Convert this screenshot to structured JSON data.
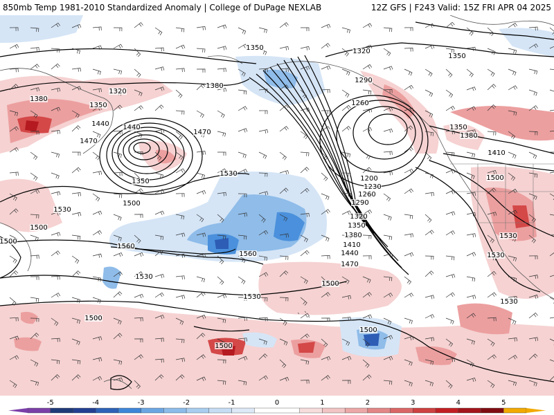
{
  "header": {
    "left": "850mb Temp 1981-2010 Standardized Anomaly | College of DuPage NEXLAB",
    "right": "12Z GFS | F243 Valid: 15Z FRI APR 04 2025"
  },
  "contour_labels": [
    {
      "text": "1350",
      "where": "north-pacific-top"
    },
    {
      "text": "1320",
      "where": "gulf-alaska-north"
    },
    {
      "text": "1290",
      "where": "gulf-alaska"
    },
    {
      "text": "1260",
      "where": "gulf-alaska-inner"
    },
    {
      "text": "1350",
      "where": "canada-top-right"
    },
    {
      "text": "1380",
      "where": "bering"
    },
    {
      "text": "1320",
      "where": "kamchatka"
    },
    {
      "text": "1350",
      "where": "kamchatka-south"
    },
    {
      "text": "1380",
      "where": "asia-west"
    },
    {
      "text": "1440",
      "where": "west-low-ring"
    },
    {
      "text": "1440",
      "where": "west-low-north"
    },
    {
      "text": "1470",
      "where": "west-low-outer"
    },
    {
      "text": "1470",
      "where": "central-north"
    },
    {
      "text": "1350",
      "where": "west-low-center"
    },
    {
      "text": "1530",
      "where": "central"
    },
    {
      "text": "1500",
      "where": "west-low-south"
    },
    {
      "text": "1530",
      "where": "far-west"
    },
    {
      "text": "1500",
      "where": "far-west-south"
    },
    {
      "text": "1560",
      "where": "subtropical-high"
    },
    {
      "text": "1560",
      "where": "subtropical-high-east"
    },
    {
      "text": "1530",
      "where": "sub-high-south"
    },
    {
      "text": "1530",
      "where": "sub-high-east"
    },
    {
      "text": "1500",
      "where": "tropics-west"
    },
    {
      "text": "1500",
      "where": "tropics-central"
    },
    {
      "text": "1500",
      "where": "tropics-east"
    },
    {
      "text": "1200",
      "where": "east-low-center"
    },
    {
      "text": "1230",
      "where": "east-low-2"
    },
    {
      "text": "1260",
      "where": "east-low-3"
    },
    {
      "text": "1290",
      "where": "east-low-4"
    },
    {
      "text": "1320",
      "where": "east-low-5"
    },
    {
      "text": "1350",
      "where": "east-low-6"
    },
    {
      "text": "1380",
      "where": "east-low-7"
    },
    {
      "text": "1410",
      "where": "east-low-8"
    },
    {
      "text": "1440",
      "where": "east-low-9"
    },
    {
      "text": "1470",
      "where": "east-low-10"
    },
    {
      "text": "1500",
      "where": "east-low-11"
    },
    {
      "text": "1350",
      "where": "bc-coast"
    },
    {
      "text": "1380",
      "where": "bc-coast-south"
    },
    {
      "text": "1410",
      "where": "pacific-nw"
    },
    {
      "text": "1500",
      "where": "us-west-interior"
    },
    {
      "text": "1530",
      "where": "us-southwest"
    },
    {
      "text": "1530",
      "where": "baja"
    },
    {
      "text": "1530",
      "where": "mexico"
    },
    {
      "text": "1500",
      "where": "far-left-edge"
    }
  ],
  "colorbar": {
    "tick_labels": [
      "-5",
      "-4",
      "-3",
      "-2",
      "-1",
      "0",
      "1",
      "2",
      "3",
      "4",
      "5"
    ],
    "range": [
      -5.5,
      5.5
    ],
    "colors": [
      {
        "from": -5.5,
        "to": -5,
        "color": "#7b3fa8"
      },
      {
        "from": -5,
        "to": -4.5,
        "color": "#1f3a78"
      },
      {
        "from": -4.5,
        "to": -4,
        "color": "#233f92"
      },
      {
        "from": -4,
        "to": -3.5,
        "color": "#2d62b8"
      },
      {
        "from": -3.5,
        "to": -3,
        "color": "#3f86d8"
      },
      {
        "from": -3,
        "to": -2.5,
        "color": "#6ba6e2"
      },
      {
        "from": -2.5,
        "to": -2,
        "color": "#8cbcea"
      },
      {
        "from": -2,
        "to": -1.5,
        "color": "#a9cdef"
      },
      {
        "from": -1.5,
        "to": -1,
        "color": "#c6ddf4"
      },
      {
        "from": -1,
        "to": -0.5,
        "color": "#dde9f7"
      },
      {
        "from": -0.5,
        "to": 0.5,
        "color": "#ffffff"
      },
      {
        "from": 0.5,
        "to": 1,
        "color": "#f7dcdc"
      },
      {
        "from": 1,
        "to": 1.5,
        "color": "#f2c4c4"
      },
      {
        "from": 1.5,
        "to": 2,
        "color": "#eca7a7"
      },
      {
        "from": 2,
        "to": 2.5,
        "color": "#e38686"
      },
      {
        "from": 2.5,
        "to": 3,
        "color": "#da6565"
      },
      {
        "from": 3,
        "to": 3.5,
        "color": "#cf4040"
      },
      {
        "from": 3.5,
        "to": 4,
        "color": "#c21f24"
      },
      {
        "from": 4,
        "to": 4.5,
        "color": "#a2141a"
      },
      {
        "from": 4.5,
        "to": 5,
        "color": "#7f0c12"
      },
      {
        "from": 5,
        "to": 5.5,
        "color": "#f2a900"
      }
    ]
  },
  "colors": {
    "warm_light": "#f6d2d2",
    "warm_mid": "#ec9f9f",
    "warm_strong": "#d44848",
    "warm_deep": "#b41a20",
    "cool_light": "#d5e5f6",
    "cool_mid": "#8fbce9",
    "cool_strong": "#4a90dc",
    "cool_deep": "#2d5db5",
    "contour": "#000000",
    "coast": "#555555"
  }
}
